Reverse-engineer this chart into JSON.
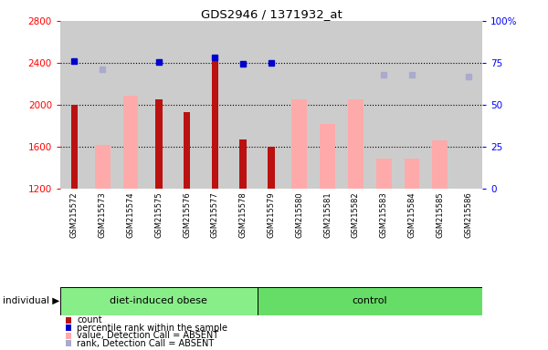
{
  "title": "GDS2946 / 1371932_at",
  "samples": [
    "GSM215572",
    "GSM215573",
    "GSM215574",
    "GSM215575",
    "GSM215576",
    "GSM215577",
    "GSM215578",
    "GSM215579",
    "GSM215580",
    "GSM215581",
    "GSM215582",
    "GSM215583",
    "GSM215584",
    "GSM215585",
    "GSM215586"
  ],
  "count": [
    2000,
    null,
    null,
    2050,
    1930,
    2470,
    1670,
    1600,
    null,
    null,
    null,
    null,
    null,
    null,
    null
  ],
  "percentile_rank": [
    2420,
    null,
    null,
    2410,
    null,
    2450,
    2395,
    2400,
    null,
    null,
    null,
    null,
    null,
    null,
    null
  ],
  "value_absent": [
    null,
    1620,
    2090,
    null,
    null,
    null,
    null,
    null,
    2050,
    1820,
    2055,
    1490,
    1490,
    1660,
    null
  ],
  "rank_absent": [
    null,
    2340,
    null,
    2410,
    null,
    null,
    2395,
    null,
    null,
    null,
    null,
    2290,
    2290,
    null,
    2270
  ],
  "ylim": [
    1200,
    2800
  ],
  "y2lim": [
    0,
    100
  ],
  "yticks": [
    1200,
    1600,
    2000,
    2400,
    2800
  ],
  "y2ticks": [
    0,
    25,
    50,
    75,
    100
  ],
  "hlines": [
    1600,
    2000,
    2400
  ],
  "count_color": "#bb1111",
  "percentile_color": "#0000cc",
  "value_absent_color": "#ffaaaa",
  "rank_absent_color": "#aaaacc",
  "group_obese_color": "#88ee88",
  "group_control_color": "#66dd66",
  "bg_color": "#cccccc",
  "n_obese": 7,
  "n_control": 8
}
